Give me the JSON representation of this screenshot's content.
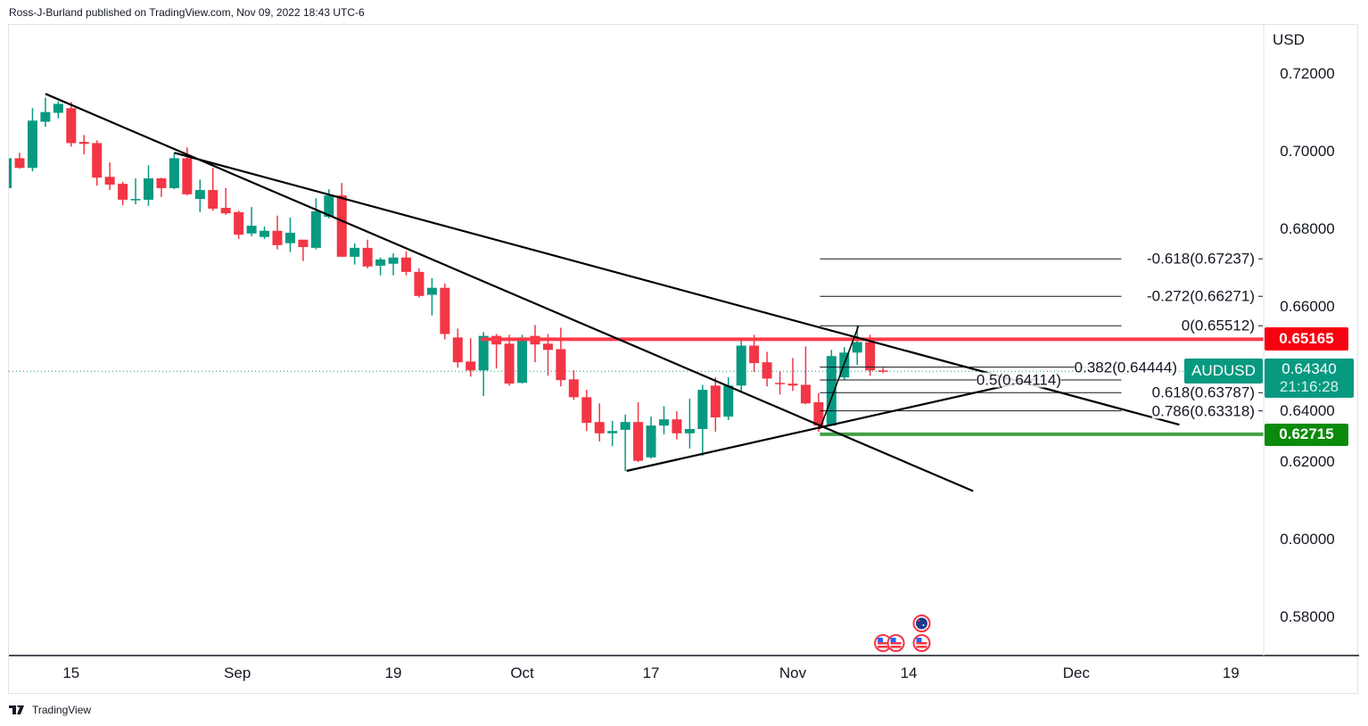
{
  "header": {
    "byline": "Ross-J-Burland published on TradingView.com, Nov 09, 2022 18:43 UTC-6"
  },
  "footer": {
    "brand": "TradingView"
  },
  "colors": {
    "up": "#089981",
    "down": "#f23645",
    "resistance": "#ff3b4b",
    "support": "#43a047",
    "badge_red": "#f7000f",
    "badge_green": "#0b8a0b"
  },
  "chart_data": {
    "type": "candlestick",
    "symbol": "AUDUSD",
    "currency": "USD",
    "ylim": [
      0.575,
      0.728
    ],
    "y_ticks": [
      "0.72000",
      "0.70000",
      "0.68000",
      "0.66000",
      "0.64000",
      "0.62000",
      "0.60000",
      "0.58000"
    ],
    "y_tick_values": [
      0.72,
      0.7,
      0.68,
      0.66,
      0.64,
      0.62,
      0.6,
      0.58
    ],
    "x_ticks": [
      {
        "label": "15",
        "index": 6
      },
      {
        "label": "Sep",
        "index": 18.9
      },
      {
        "label": "19",
        "index": 31
      },
      {
        "label": "Oct",
        "index": 41
      },
      {
        "label": "17",
        "index": 51
      },
      {
        "label": "Nov",
        "index": 62
      },
      {
        "label": "14",
        "index": 71
      },
      {
        "label": "Dec",
        "index": 84
      },
      {
        "label": "19",
        "index": 96
      }
    ],
    "candles_ohlc": [
      [
        0.6906,
        0.6983,
        0.6906,
        0.6983
      ],
      [
        0.6983,
        0.6997,
        0.6956,
        0.6958
      ],
      [
        0.6958,
        0.7112,
        0.6949,
        0.708
      ],
      [
        0.7077,
        0.7139,
        0.7064,
        0.7102
      ],
      [
        0.71,
        0.713,
        0.7086,
        0.7123
      ],
      [
        0.7112,
        0.7128,
        0.7013,
        0.7022
      ],
      [
        0.7025,
        0.7043,
        0.6993,
        0.702
      ],
      [
        0.7022,
        0.7029,
        0.6912,
        0.6933
      ],
      [
        0.6935,
        0.6972,
        0.6901,
        0.6915
      ],
      [
        0.6917,
        0.6922,
        0.6862,
        0.6876
      ],
      [
        0.6876,
        0.6931,
        0.6864,
        0.6878
      ],
      [
        0.6876,
        0.6965,
        0.686,
        0.6931
      ],
      [
        0.6931,
        0.6933,
        0.6883,
        0.6906
      ],
      [
        0.6906,
        0.6997,
        0.6903,
        0.6983
      ],
      [
        0.6983,
        0.7011,
        0.6887,
        0.689
      ],
      [
        0.6878,
        0.6928,
        0.6844,
        0.6901
      ],
      [
        0.6901,
        0.6958,
        0.6848,
        0.6853
      ],
      [
        0.6855,
        0.6906,
        0.6837,
        0.6841
      ],
      [
        0.6844,
        0.6848,
        0.6775,
        0.6786
      ],
      [
        0.6789,
        0.6857,
        0.6782,
        0.6809
      ],
      [
        0.678,
        0.6807,
        0.6775,
        0.6796
      ],
      [
        0.6796,
        0.6835,
        0.6748,
        0.6759
      ],
      [
        0.6764,
        0.683,
        0.6741,
        0.6791
      ],
      [
        0.6773,
        0.6773,
        0.6718,
        0.6754
      ],
      [
        0.6752,
        0.688,
        0.6748,
        0.6846
      ],
      [
        0.6832,
        0.6903,
        0.6828,
        0.6887
      ],
      [
        0.6887,
        0.6919,
        0.6729,
        0.6729
      ],
      [
        0.6729,
        0.6764,
        0.6709,
        0.6752
      ],
      [
        0.6752,
        0.6773,
        0.6699,
        0.6704
      ],
      [
        0.6706,
        0.6727,
        0.6681,
        0.6722
      ],
      [
        0.6711,
        0.6738,
        0.6681,
        0.6727
      ],
      [
        0.6727,
        0.6743,
        0.6681,
        0.669
      ],
      [
        0.669,
        0.6699,
        0.6624,
        0.6628
      ],
      [
        0.6631,
        0.6674,
        0.6578,
        0.6649
      ],
      [
        0.6649,
        0.666,
        0.6516,
        0.653
      ],
      [
        0.6521,
        0.6544,
        0.6443,
        0.6457
      ],
      [
        0.6459,
        0.6519,
        0.642,
        0.6436
      ],
      [
        0.6436,
        0.6535,
        0.637,
        0.6525
      ],
      [
        0.6525,
        0.653,
        0.6441,
        0.6503
      ],
      [
        0.6505,
        0.6528,
        0.6397,
        0.6402
      ],
      [
        0.6404,
        0.6528,
        0.6402,
        0.6521
      ],
      [
        0.6525,
        0.6553,
        0.6457,
        0.6503
      ],
      [
        0.6505,
        0.653,
        0.6422,
        0.6489
      ],
      [
        0.6491,
        0.6546,
        0.6395,
        0.6411
      ],
      [
        0.6413,
        0.6436,
        0.636,
        0.6367
      ],
      [
        0.6367,
        0.6386,
        0.628,
        0.6301
      ],
      [
        0.6303,
        0.6351,
        0.6253,
        0.6274
      ],
      [
        0.6274,
        0.6306,
        0.6241,
        0.628
      ],
      [
        0.6283,
        0.6322,
        0.6177,
        0.6303
      ],
      [
        0.6303,
        0.6354,
        0.62,
        0.6203
      ],
      [
        0.6212,
        0.6317,
        0.6209,
        0.6294
      ],
      [
        0.6294,
        0.6344,
        0.6271,
        0.631
      ],
      [
        0.631,
        0.6331,
        0.6258,
        0.6274
      ],
      [
        0.6274,
        0.6363,
        0.6235,
        0.6285
      ],
      [
        0.6285,
        0.6399,
        0.6216,
        0.6386
      ],
      [
        0.6397,
        0.6418,
        0.6278,
        0.6315
      ],
      [
        0.6317,
        0.6418,
        0.6308,
        0.6397
      ],
      [
        0.6397,
        0.6516,
        0.6379,
        0.65
      ],
      [
        0.65,
        0.6528,
        0.6432,
        0.6455
      ],
      [
        0.6457,
        0.6484,
        0.6395,
        0.6415
      ],
      [
        0.6404,
        0.6434,
        0.6374,
        0.6402
      ],
      [
        0.6402,
        0.6468,
        0.6383,
        0.6397
      ],
      [
        0.6399,
        0.6498,
        0.6349,
        0.6351
      ],
      [
        0.6354,
        0.6377,
        0.6278,
        0.6294
      ],
      [
        0.6294,
        0.6489,
        0.6294,
        0.6473
      ],
      [
        0.6418,
        0.6496,
        0.6411,
        0.6482
      ],
      [
        0.6482,
        0.6551,
        0.645,
        0.6509
      ],
      [
        0.6509,
        0.6528,
        0.6422,
        0.6436
      ],
      [
        0.6436,
        0.6443,
        0.6429,
        0.6434
      ]
    ],
    "trendlines": [
      {
        "from": [
          4,
          0.7149
        ],
        "to": [
          76,
          0.6125
        ]
      },
      {
        "from": [
          14,
          0.6997
        ],
        "to": [
          92,
          0.6296
        ]
      },
      {
        "from": [
          49.1,
          0.6177
        ],
        "to": [
          81,
          0.6415
        ]
      },
      {
        "from": [
          64.1,
          0.6285
        ],
        "to": [
          67.1,
          0.6551
        ]
      }
    ],
    "resistance": {
      "value": 0.65165,
      "label": "0.65165",
      "from_index": 37.8
    },
    "support": {
      "value": 0.62715,
      "label": "0.62715",
      "from_index": 64.1
    },
    "fib_levels": [
      {
        "label": "-0.618(0.67237)",
        "value": 0.67237
      },
      {
        "label": "-0.272(0.66271)",
        "value": 0.66271
      },
      {
        "label": "0(0.65512)",
        "value": 0.65512
      },
      {
        "label": "0.382(0.64444)",
        "value": 0.64444
      },
      {
        "label": "0.5(0.64114)",
        "value": 0.64114
      },
      {
        "label": "0.618(0.63787)",
        "value": 0.63787
      },
      {
        "label": "0.786(0.63318)",
        "value": 0.63318
      }
    ],
    "fib_range": {
      "from_index": 64.1,
      "to_index": 87.5
    },
    "last_price": {
      "value": 0.6434,
      "label": "0.64340",
      "countdown": "21:16:28"
    },
    "events": [
      {
        "flag": "US",
        "index": 69
      },
      {
        "flag": "US",
        "index": 70
      },
      {
        "flag": "US",
        "index": 72
      },
      {
        "flag": "AU",
        "index": 72
      }
    ]
  }
}
